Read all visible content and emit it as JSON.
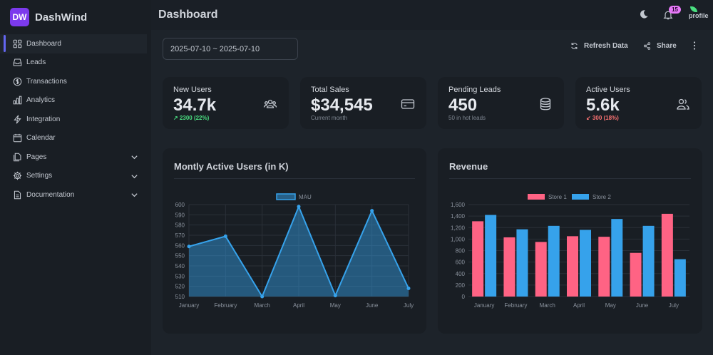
{
  "brand": {
    "logo_text": "DW",
    "name": "DashWind"
  },
  "sidebar": {
    "items": [
      {
        "label": "Dashboard",
        "icon": "squares-icon"
      },
      {
        "label": "Leads",
        "icon": "inbox-icon"
      },
      {
        "label": "Transactions",
        "icon": "dollar-icon"
      },
      {
        "label": "Analytics",
        "icon": "bar-chart-icon"
      },
      {
        "label": "Integration",
        "icon": "bolt-icon"
      },
      {
        "label": "Calendar",
        "icon": "calendar-icon"
      },
      {
        "label": "Pages",
        "icon": "documents-icon"
      },
      {
        "label": "Settings",
        "icon": "gear-icon"
      },
      {
        "label": "Documentation",
        "icon": "document-icon"
      }
    ]
  },
  "header": {
    "title": "Dashboard",
    "notification_count": "15",
    "profile_text": "profile"
  },
  "toolbar": {
    "date_range": "2025-07-10 ~ 2025-07-10",
    "refresh_label": "Refresh Data",
    "share_label": "Share"
  },
  "stats": [
    {
      "label": "New Users",
      "value": "34.7k",
      "desc": "↗ 2300 (22%)"
    },
    {
      "label": "Total Sales",
      "value": "$34,545",
      "desc": "Current month"
    },
    {
      "label": "Pending Leads",
      "value": "450",
      "desc": "50 in hot leads"
    },
    {
      "label": "Active Users",
      "value": "5.6k",
      "desc": "↙ 300 (18%)"
    }
  ],
  "colors": {
    "accent": "#6366f1",
    "area": "#36a2eb",
    "store1": "#ff6384",
    "store2": "#36a2eb",
    "up": "#4ade80",
    "down": "#f87171"
  },
  "chart_data": [
    {
      "type": "area",
      "title": "Montly Active Users (in K)",
      "legend": [
        "MAU"
      ],
      "categories": [
        "January",
        "February",
        "March",
        "April",
        "May",
        "June",
        "July"
      ],
      "series": [
        {
          "name": "MAU",
          "values": [
            559,
            569,
            510,
            598,
            511,
            594,
            518
          ]
        }
      ],
      "ylim": [
        510,
        600
      ],
      "yticks": [
        "600",
        "590",
        "580",
        "570",
        "560",
        "550",
        "540",
        "530",
        "520",
        "510"
      ]
    },
    {
      "type": "bar",
      "title": "Revenue",
      "legend": [
        "Store 1",
        "Store 2"
      ],
      "categories": [
        "January",
        "February",
        "March",
        "April",
        "May",
        "June",
        "July"
      ],
      "series": [
        {
          "name": "Store 1",
          "values": [
            1310,
            1030,
            950,
            1050,
            1040,
            760,
            1440
          ]
        },
        {
          "name": "Store 2",
          "values": [
            1420,
            1170,
            1230,
            1160,
            1350,
            1230,
            650
          ]
        }
      ],
      "ylim": [
        0,
        1600
      ],
      "yticks": [
        "1,600",
        "1,400",
        "1,200",
        "1,000",
        "800",
        "600",
        "400",
        "200",
        "0"
      ]
    }
  ]
}
